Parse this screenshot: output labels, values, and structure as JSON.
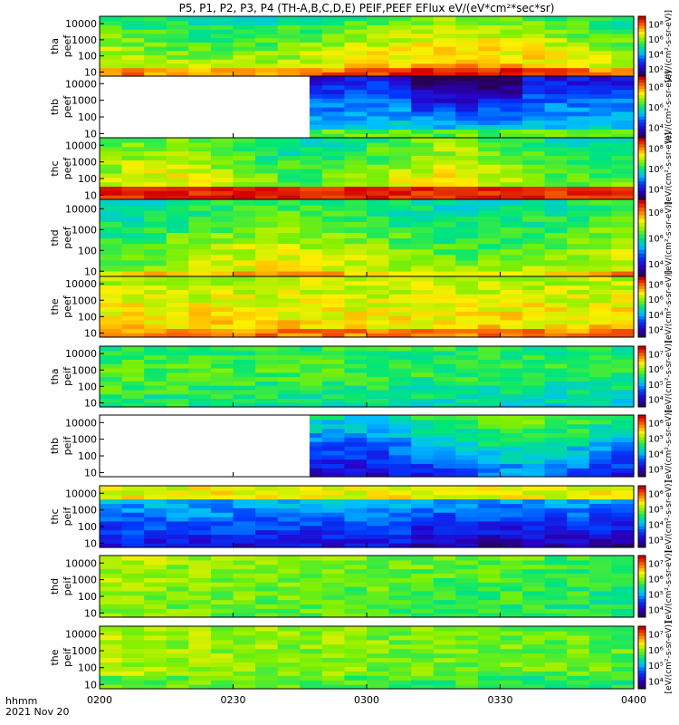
{
  "title": "P5, P1, P2, P3, P4 (TH-A,B,C,D,E) PEIF,PEEF EFlux eV/(eV*cm²*sec*sr)",
  "footer": {
    "label_line1": "hhmm",
    "label_line2": "2021 Nov 20"
  },
  "colorbar_unit": "[eV/(cm²-s-sr-eV)]",
  "chart_data": {
    "type": "heatmap",
    "x_ticks": [
      "0200",
      "0230",
      "0300",
      "0330",
      "0400"
    ],
    "y_ticks": [
      "10",
      "100",
      "1000",
      "10000"
    ],
    "panels": [
      {
        "label": [
          "tha",
          "peef"
        ],
        "cbar_ticks": [
          "10²",
          "10⁴",
          "10⁶",
          "10⁸"
        ],
        "profile": "electron_hot",
        "gap_end": 0
      },
      {
        "label": [
          "thb",
          "peef"
        ],
        "cbar_ticks": [
          "10⁴",
          "10⁶",
          "10⁸"
        ],
        "profile": "electron_thb",
        "gap_end": 0.393
      },
      {
        "label": [
          "thc",
          "peef"
        ],
        "cbar_ticks": [
          "10⁴",
          "10⁶",
          "10⁸"
        ],
        "profile": "electron_thc",
        "gap_end": 0
      },
      {
        "label": [
          "thd",
          "peef"
        ],
        "cbar_ticks": [
          "10⁴",
          "10⁶",
          "10⁸"
        ],
        "profile": "electron_thd",
        "gap_end": 0
      },
      {
        "label": [
          "the",
          "peef"
        ],
        "cbar_ticks": [
          "10²",
          "10⁴",
          "10⁶",
          "10⁸"
        ],
        "profile": "electron_the",
        "gap_end": 0
      },
      {
        "label": [
          "tha",
          "peif"
        ],
        "cbar_ticks": [
          "10⁴",
          "10⁵",
          "10⁶",
          "10⁷"
        ],
        "profile": "ion_a",
        "gap_end": 0
      },
      {
        "label": [
          "thb",
          "peif"
        ],
        "cbar_ticks": [
          "10³",
          "10⁴",
          "10⁵",
          "10⁶"
        ],
        "profile": "ion_b",
        "gap_end": 0.393
      },
      {
        "label": [
          "thc",
          "peif"
        ],
        "cbar_ticks": [
          "10³",
          "10⁴",
          "10⁵",
          "10⁶"
        ],
        "profile": "ion_c",
        "gap_end": 0
      },
      {
        "label": [
          "thd",
          "peif"
        ],
        "cbar_ticks": [
          "10⁴",
          "10⁵",
          "10⁶",
          "10⁷"
        ],
        "profile": "ion_d",
        "gap_end": 0
      },
      {
        "label": [
          "the",
          "peif"
        ],
        "cbar_ticks": [
          "10⁴",
          "10⁵",
          "10⁶",
          "10⁷"
        ],
        "profile": "ion_e",
        "gap_end": 0
      }
    ]
  }
}
